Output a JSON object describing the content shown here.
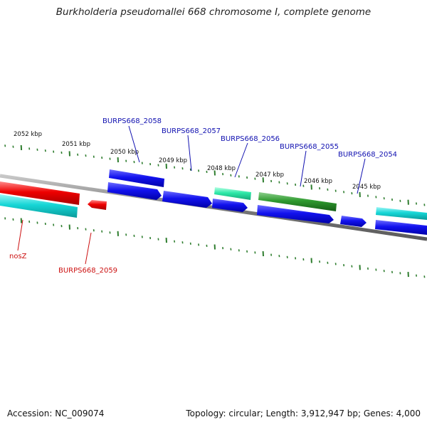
{
  "title": "Burkholderia pseudomallei 668 chromosome I, complete genome",
  "footer": {
    "accession": "Accession: NC_009074",
    "summary": "Topology: circular; Length: 3,912,947 bp; Genes: 4,000"
  },
  "colors": {
    "blue_gene": "#0a0ae6",
    "red_gene": "#ee0000",
    "cyan_gene": "#16d6d6",
    "teal_gene": "#2ee8a8",
    "green_gene": "#2f9a2f",
    "tick": "#2e7d2e",
    "backbone": "#888888",
    "blue_label": "#1010b0",
    "red_label": "#cc1111"
  },
  "scale_labels": [
    "2052 kbp",
    "2051 kbp",
    "2050 kbp",
    "2049 kbp",
    "2048 kbp",
    "2047 kbp",
    "2046 kbp",
    "2045 kbp"
  ],
  "gene_labels": [
    {
      "text": "BURPS668_2058",
      "color": "blue"
    },
    {
      "text": "BURPS668_2057",
      "color": "blue"
    },
    {
      "text": "BURPS668_2056",
      "color": "blue"
    },
    {
      "text": "BURPS668_2055",
      "color": "blue"
    },
    {
      "text": "BURPS668_2054",
      "color": "blue"
    },
    {
      "text": "nosZ",
      "color": "red"
    },
    {
      "text": "BURPS668_2059",
      "color": "red"
    }
  ]
}
